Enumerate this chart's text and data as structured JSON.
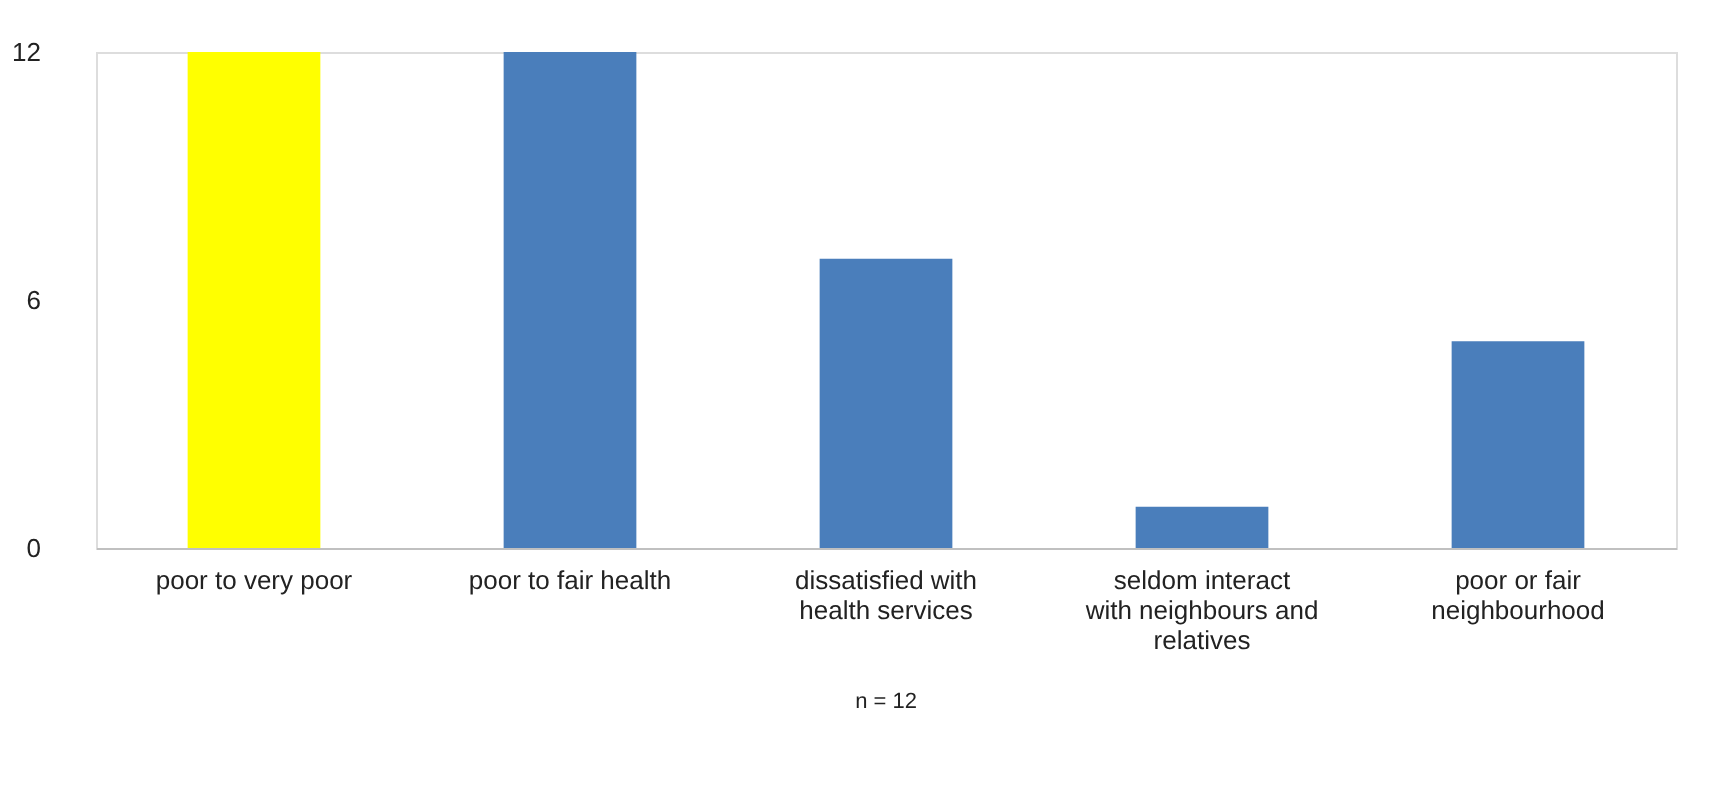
{
  "chart_data": {
    "type": "bar",
    "categories": [
      "poor to very poor",
      "poor to fair health",
      "dissatisfied with health services",
      "seldom interact with neighbours and relatives",
      "poor or fair neighbourhood"
    ],
    "values": [
      12,
      12,
      7,
      1,
      5
    ],
    "colors": [
      "#ffff00",
      "#4a7ebb",
      "#4a7ebb",
      "#4a7ebb",
      "#4a7ebb"
    ],
    "ylim": [
      0,
      12
    ],
    "yticks": [
      0,
      6,
      12
    ],
    "grid": false,
    "annotations": [
      "n = 12"
    ]
  }
}
